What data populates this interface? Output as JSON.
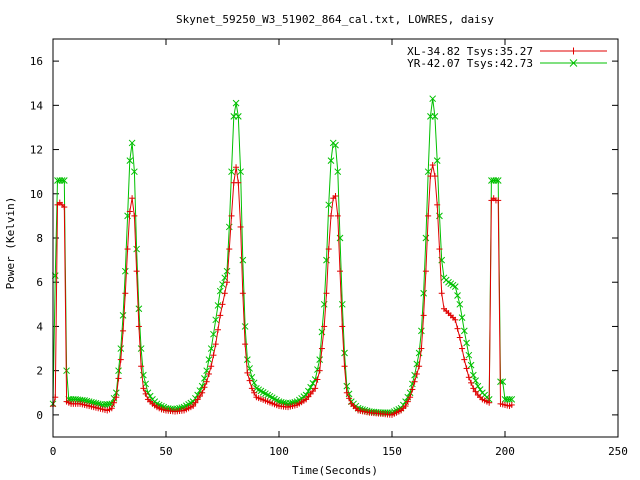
{
  "chart_data": {
    "type": "line",
    "title": "Skynet_59250_W3_51902_864_cal.txt, LOWRES, daisy",
    "xlabel": "Time(Seconds)",
    "ylabel": "Power (Kelvin)",
    "xlim": [
      0,
      250
    ],
    "ylim": [
      -1,
      17
    ],
    "xticks": [
      0,
      50,
      100,
      150,
      200,
      250
    ],
    "yticks": [
      0,
      2,
      4,
      6,
      8,
      10,
      12,
      14,
      16
    ],
    "grid": false,
    "legend_position": "top-right",
    "series": [
      {
        "name": "XL-34.82 Tsys:35.27",
        "color": "#e00000",
        "marker": "plus",
        "points": [
          [
            0,
            0.4
          ],
          [
            1,
            0.8
          ],
          [
            2,
            9.5
          ],
          [
            3,
            9.6
          ],
          [
            4,
            9.5
          ],
          [
            5,
            9.4
          ],
          [
            6,
            0.6
          ],
          [
            8,
            0.5
          ],
          [
            10,
            0.5
          ],
          [
            12,
            0.5
          ],
          [
            14,
            0.45
          ],
          [
            16,
            0.4
          ],
          [
            18,
            0.35
          ],
          [
            20,
            0.3
          ],
          [
            22,
            0.25
          ],
          [
            24,
            0.2
          ],
          [
            26,
            0.3
          ],
          [
            28,
            0.8
          ],
          [
            30,
            2.5
          ],
          [
            31,
            3.8
          ],
          [
            32,
            5.5
          ],
          [
            33,
            7.5
          ],
          [
            34,
            9.2
          ],
          [
            35,
            9.8
          ],
          [
            36,
            9.0
          ],
          [
            37,
            6.5
          ],
          [
            38,
            4.0
          ],
          [
            39,
            2.2
          ],
          [
            40,
            1.2
          ],
          [
            42,
            0.7
          ],
          [
            44,
            0.5
          ],
          [
            46,
            0.35
          ],
          [
            48,
            0.25
          ],
          [
            50,
            0.2
          ],
          [
            54,
            0.15
          ],
          [
            58,
            0.2
          ],
          [
            62,
            0.4
          ],
          [
            64,
            0.7
          ],
          [
            66,
            1.0
          ],
          [
            68,
            1.5
          ],
          [
            70,
            2.2
          ],
          [
            72,
            3.2
          ],
          [
            74,
            4.5
          ],
          [
            76,
            5.5
          ],
          [
            77,
            6.0
          ],
          [
            78,
            7.5
          ],
          [
            79,
            9.0
          ],
          [
            80,
            10.5
          ],
          [
            81,
            11.2
          ],
          [
            82,
            10.5
          ],
          [
            83,
            8.5
          ],
          [
            84,
            5.5
          ],
          [
            85,
            3.2
          ],
          [
            86,
            1.9
          ],
          [
            88,
            1.2
          ],
          [
            90,
            0.8
          ],
          [
            95,
            0.6
          ],
          [
            100,
            0.4
          ],
          [
            104,
            0.35
          ],
          [
            108,
            0.45
          ],
          [
            112,
            0.7
          ],
          [
            116,
            1.2
          ],
          [
            118,
            2.0
          ],
          [
            120,
            4.0
          ],
          [
            121,
            5.5
          ],
          [
            122,
            7.5
          ],
          [
            123,
            9.0
          ],
          [
            124,
            9.8
          ],
          [
            125,
            9.9
          ],
          [
            126,
            9.0
          ],
          [
            127,
            6.5
          ],
          [
            128,
            4.0
          ],
          [
            129,
            2.2
          ],
          [
            130,
            1.0
          ],
          [
            132,
            0.5
          ],
          [
            135,
            0.2
          ],
          [
            140,
            0.1
          ],
          [
            145,
            0.05
          ],
          [
            150,
            0.0
          ],
          [
            154,
            0.2
          ],
          [
            156,
            0.4
          ],
          [
            158,
            0.8
          ],
          [
            160,
            1.5
          ],
          [
            162,
            2.2
          ],
          [
            163,
            3.0
          ],
          [
            164,
            4.5
          ],
          [
            165,
            6.5
          ],
          [
            166,
            9.0
          ],
          [
            167,
            10.8
          ],
          [
            168,
            11.3
          ],
          [
            169,
            10.8
          ],
          [
            170,
            9.5
          ],
          [
            171,
            7.5
          ],
          [
            172,
            5.5
          ],
          [
            173,
            4.8
          ],
          [
            175,
            4.6
          ],
          [
            178,
            4.3
          ],
          [
            180,
            3.5
          ],
          [
            182,
            2.5
          ],
          [
            184,
            1.7
          ],
          [
            186,
            1.2
          ],
          [
            188,
            0.9
          ],
          [
            190,
            0.7
          ],
          [
            192,
            0.6
          ],
          [
            193,
            0.55
          ],
          [
            194,
            9.7
          ],
          [
            195,
            9.8
          ],
          [
            196,
            9.7
          ],
          [
            197,
            9.7
          ],
          [
            198,
            0.5
          ],
          [
            200,
            0.45
          ],
          [
            202,
            0.4
          ],
          [
            203,
            0.45
          ]
        ]
      },
      {
        "name": "YR-42.07 Tsys:42.73",
        "color": "#00c000",
        "marker": "cross",
        "points": [
          [
            0,
            0.5
          ],
          [
            1,
            6.3
          ],
          [
            2,
            10.6
          ],
          [
            3,
            10.6
          ],
          [
            4,
            10.6
          ],
          [
            5,
            10.6
          ],
          [
            6,
            2.0
          ],
          [
            7,
            0.7
          ],
          [
            10,
            0.7
          ],
          [
            14,
            0.65
          ],
          [
            18,
            0.55
          ],
          [
            22,
            0.45
          ],
          [
            26,
            0.5
          ],
          [
            28,
            1.0
          ],
          [
            30,
            3.0
          ],
          [
            31,
            4.5
          ],
          [
            32,
            6.5
          ],
          [
            33,
            9.0
          ],
          [
            34,
            11.5
          ],
          [
            35,
            12.3
          ],
          [
            36,
            11.0
          ],
          [
            37,
            7.5
          ],
          [
            38,
            4.8
          ],
          [
            39,
            3.0
          ],
          [
            40,
            1.8
          ],
          [
            42,
            1.0
          ],
          [
            44,
            0.7
          ],
          [
            46,
            0.5
          ],
          [
            48,
            0.4
          ],
          [
            50,
            0.3
          ],
          [
            54,
            0.25
          ],
          [
            58,
            0.35
          ],
          [
            62,
            0.6
          ],
          [
            64,
            0.9
          ],
          [
            66,
            1.3
          ],
          [
            68,
            2.0
          ],
          [
            70,
            3.0
          ],
          [
            72,
            4.3
          ],
          [
            74,
            5.6
          ],
          [
            76,
            6.2
          ],
          [
            77,
            6.5
          ],
          [
            78,
            8.5
          ],
          [
            79,
            11.0
          ],
          [
            80,
            13.5
          ],
          [
            81,
            14.1
          ],
          [
            82,
            13.5
          ],
          [
            83,
            11.0
          ],
          [
            84,
            7.0
          ],
          [
            85,
            4.0
          ],
          [
            86,
            2.5
          ],
          [
            88,
            1.7
          ],
          [
            90,
            1.2
          ],
          [
            95,
            0.9
          ],
          [
            100,
            0.6
          ],
          [
            104,
            0.5
          ],
          [
            108,
            0.6
          ],
          [
            112,
            0.9
          ],
          [
            116,
            1.6
          ],
          [
            118,
            2.5
          ],
          [
            120,
            5.0
          ],
          [
            121,
            7.0
          ],
          [
            122,
            9.5
          ],
          [
            123,
            11.5
          ],
          [
            124,
            12.3
          ],
          [
            125,
            12.2
          ],
          [
            126,
            11.0
          ],
          [
            127,
            8.0
          ],
          [
            128,
            5.0
          ],
          [
            129,
            2.8
          ],
          [
            130,
            1.3
          ],
          [
            132,
            0.6
          ],
          [
            135,
            0.3
          ],
          [
            140,
            0.15
          ],
          [
            145,
            0.1
          ],
          [
            150,
            0.1
          ],
          [
            154,
            0.3
          ],
          [
            156,
            0.6
          ],
          [
            158,
            1.0
          ],
          [
            160,
            1.8
          ],
          [
            162,
            2.8
          ],
          [
            163,
            3.8
          ],
          [
            164,
            5.5
          ],
          [
            165,
            8.0
          ],
          [
            166,
            11.0
          ],
          [
            167,
            13.5
          ],
          [
            168,
            14.3
          ],
          [
            169,
            13.5
          ],
          [
            170,
            11.5
          ],
          [
            171,
            9.0
          ],
          [
            172,
            7.0
          ],
          [
            173,
            6.2
          ],
          [
            175,
            6.0
          ],
          [
            178,
            5.8
          ],
          [
            180,
            5.0
          ],
          [
            182,
            3.8
          ],
          [
            184,
            2.7
          ],
          [
            186,
            1.8
          ],
          [
            188,
            1.3
          ],
          [
            190,
            1.0
          ],
          [
            192,
            0.8
          ],
          [
            193,
            0.7
          ],
          [
            194,
            10.6
          ],
          [
            195,
            10.6
          ],
          [
            196,
            10.6
          ],
          [
            197,
            10.6
          ],
          [
            198,
            1.5
          ],
          [
            199,
            1.5
          ],
          [
            200,
            0.7
          ],
          [
            202,
            0.7
          ],
          [
            203,
            0.7
          ]
        ]
      }
    ]
  }
}
